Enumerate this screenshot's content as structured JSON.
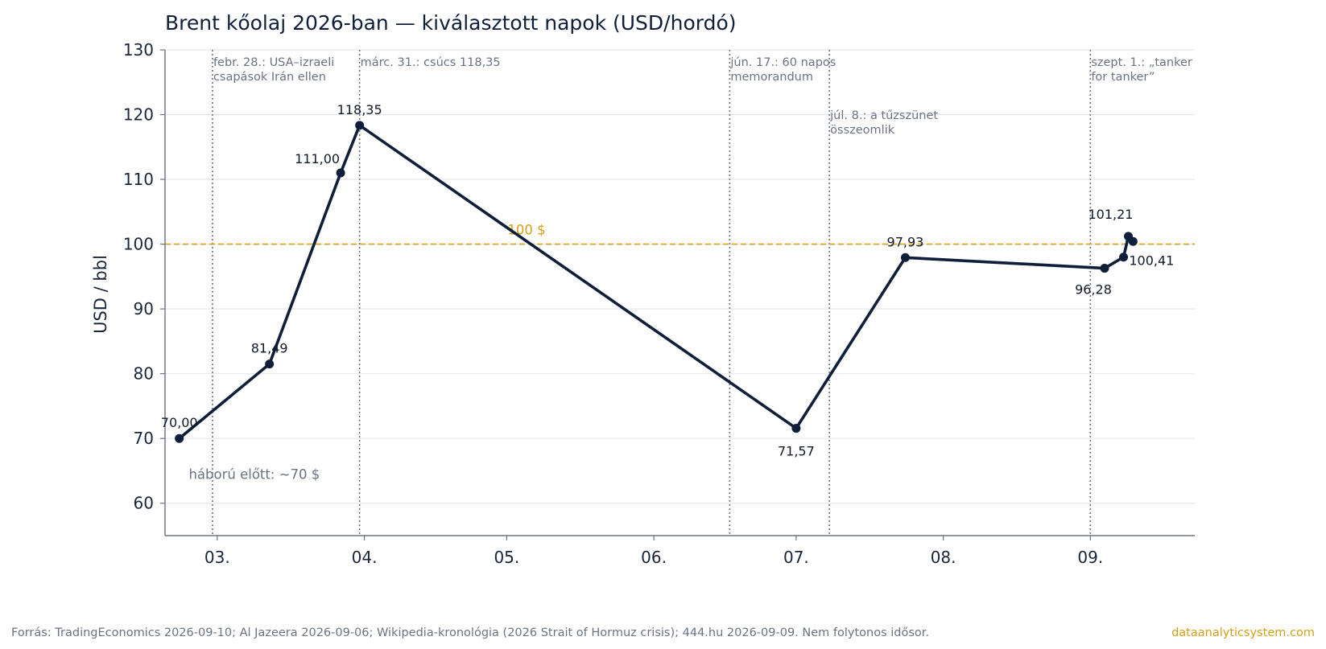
{
  "chart_data": {
    "type": "line",
    "title": "Brent kőolaj 2026-ban — kiválasztott napok (USD/hordó)",
    "xlabel": "",
    "ylabel": "USD / bbl",
    "ylim": [
      55,
      130
    ],
    "xlim": [
      "2026-02-18",
      "2026-09-23"
    ],
    "yticks": [
      60,
      70,
      80,
      90,
      100,
      110,
      120,
      130
    ],
    "xticks": [
      {
        "date": "2026-03-01",
        "label": "03."
      },
      {
        "date": "2026-04-01",
        "label": "04."
      },
      {
        "date": "2026-05-01",
        "label": "05."
      },
      {
        "date": "2026-06-01",
        "label": "06."
      },
      {
        "date": "2026-07-01",
        "label": "07."
      },
      {
        "date": "2026-08-01",
        "label": "08."
      },
      {
        "date": "2026-09-01",
        "label": "09."
      }
    ],
    "grid": "horizontal",
    "legend": "none",
    "series": [
      {
        "x": [
          "2026-02-21",
          "2026-03-12",
          "2026-03-27",
          "2026-03-31",
          "2026-07-01",
          "2026-07-24",
          "2026-09-04",
          "2026-09-08",
          "2026-09-09",
          "2026-09-10"
        ],
        "y": [
          70.0,
          81.49,
          111.0,
          118.35,
          71.57,
          97.93,
          96.28,
          98.0,
          101.21,
          100.41
        ],
        "labels": [
          "70,00",
          "81,49",
          "111,00",
          "118,35",
          "71,57",
          "97,93",
          "96,28",
          "",
          "101,21",
          "100,41"
        ],
        "label_pos": [
          "above",
          "above",
          "above-left",
          "above",
          "below",
          "above",
          "below",
          "",
          "above",
          "below-right"
        ]
      }
    ],
    "reference_line": {
      "y": 100,
      "label": "100 $",
      "color": "#d4a017"
    },
    "events": [
      {
        "date": "2026-02-28",
        "label": [
          "febr. 28.: USA–izraeli",
          "csapások Irán ellen"
        ],
        "row": 0
      },
      {
        "date": "2026-03-31",
        "label": [
          "márc. 31.: csúcs 118,35"
        ],
        "row": 0
      },
      {
        "date": "2026-06-17",
        "label": [
          "jún. 17.: 60 napos",
          "memorandum"
        ],
        "row": 0
      },
      {
        "date": "2026-07-08",
        "label": [
          "júl. 8.: a tűzszünet",
          "összeomlik"
        ],
        "row": 1
      },
      {
        "date": "2026-09-01",
        "label": [
          "szept. 1.: „tanker",
          "for tanker”"
        ],
        "row": 0
      }
    ],
    "annotation": {
      "text": "háború előtt: ~70 $",
      "x": "2026-02-23",
      "y": 64.5
    },
    "colors": {
      "line": "#0f1f3a",
      "event_line": "#6b7280",
      "grid": "#e5e7eb",
      "axis": "#6b7280",
      "reference": "#d4a017"
    }
  },
  "footer": {
    "source": "Forrás: TradingEconomics 2026-09-10; Al Jazeera 2026-09-06; Wikipedia-kronológia (2026 Strait of Hormuz crisis); 444.hu 2026-09-09. Nem folytonos idősor.",
    "brand": "dataanalyticsystem.com",
    "brand_color": "#d4a017"
  }
}
